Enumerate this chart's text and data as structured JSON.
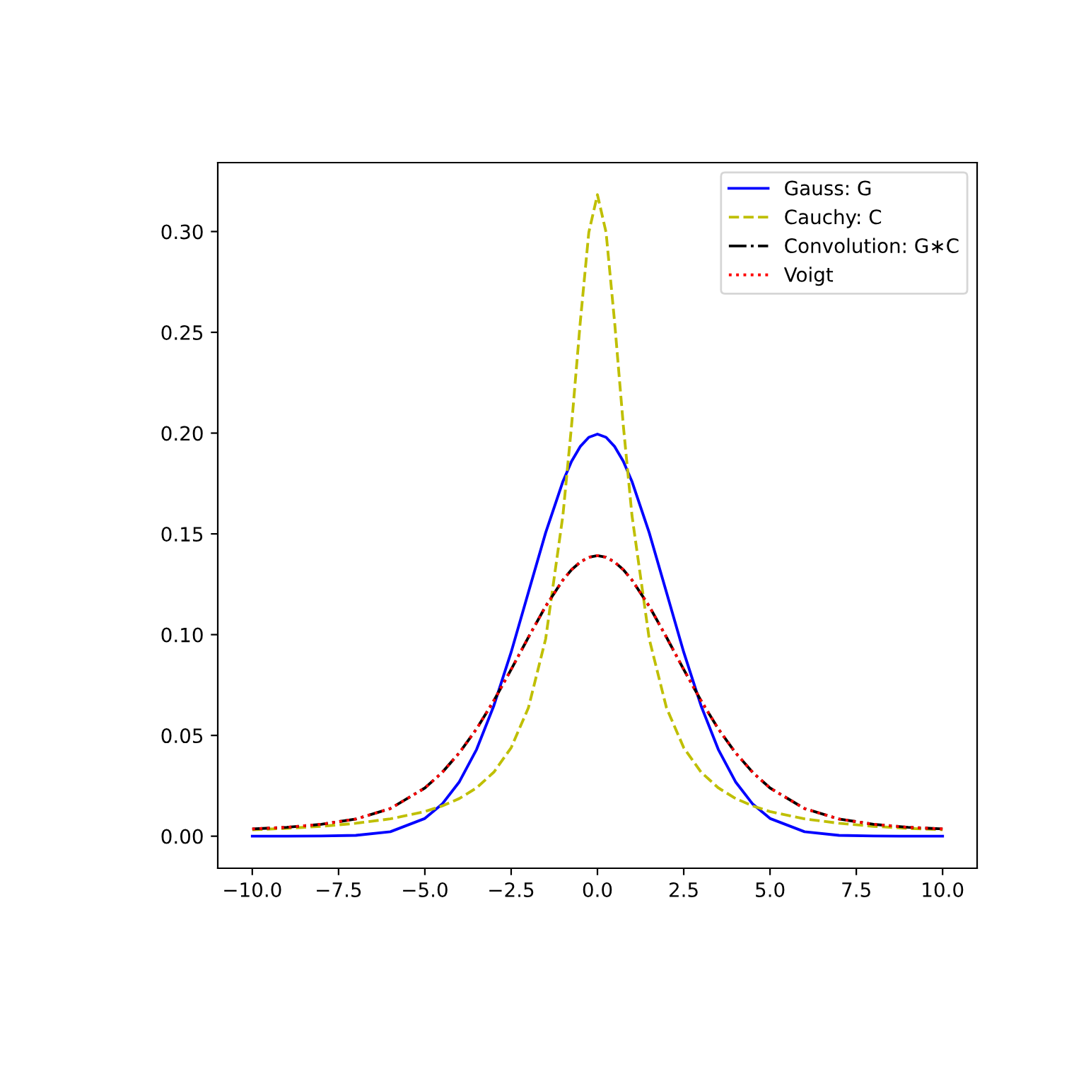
{
  "chart_data": {
    "type": "line",
    "x": [
      -10,
      -9,
      -8,
      -7,
      -6,
      -5,
      -4.5,
      -4,
      -3.5,
      -3,
      -2.5,
      -2,
      -1.5,
      -1,
      -0.75,
      -0.5,
      -0.25,
      0,
      0.25,
      0.5,
      0.75,
      1,
      1.5,
      2,
      2.5,
      3,
      3.5,
      4,
      4.5,
      5,
      6,
      7,
      8,
      9,
      10
    ],
    "series": [
      {
        "name": "Gauss: G",
        "color": "#0000ff",
        "line_style": "solid",
        "values": [
          0,
          0,
          0.0001,
          0.0004,
          0.0022,
          0.0088,
          0.0159,
          0.027,
          0.0431,
          0.0648,
          0.0913,
          0.121,
          0.1506,
          0.176,
          0.186,
          0.1933,
          0.1979,
          0.1995,
          0.1979,
          0.1933,
          0.186,
          0.176,
          0.1506,
          0.121,
          0.0913,
          0.0648,
          0.0431,
          0.027,
          0.0159,
          0.0088,
          0.0022,
          0.0004,
          0.0001,
          0,
          0
        ]
      },
      {
        "name": "Cauchy: C",
        "color": "#bfbf00",
        "line_style": "dashed",
        "values": [
          0.0032,
          0.0039,
          0.0049,
          0.0064,
          0.0086,
          0.0122,
          0.015,
          0.0187,
          0.024,
          0.0318,
          0.0439,
          0.0637,
          0.0979,
          0.1592,
          0.2037,
          0.2546,
          0.2996,
          0.3183,
          0.2996,
          0.2546,
          0.2037,
          0.1592,
          0.0979,
          0.0637,
          0.0439,
          0.0318,
          0.024,
          0.0187,
          0.015,
          0.0122,
          0.0086,
          0.0064,
          0.0049,
          0.0039,
          0.0032
        ]
      },
      {
        "name": "Convolution: G∗C",
        "color": "#000000",
        "line_style": "dashdot",
        "values": [
          0.0036,
          0.0044,
          0.0059,
          0.0085,
          0.0137,
          0.0239,
          0.0316,
          0.0414,
          0.0533,
          0.0673,
          0.0827,
          0.0987,
          0.1141,
          0.1271,
          0.1322,
          0.136,
          0.1384,
          0.1392,
          0.1384,
          0.136,
          0.1322,
          0.1271,
          0.1141,
          0.0987,
          0.0827,
          0.0673,
          0.0533,
          0.0414,
          0.0316,
          0.0239,
          0.0137,
          0.0085,
          0.0059,
          0.0044,
          0.0036
        ]
      },
      {
        "name": "Voigt",
        "color": "#ff0000",
        "line_style": "dotted",
        "values": [
          0.0036,
          0.0044,
          0.0059,
          0.0085,
          0.0137,
          0.0239,
          0.0316,
          0.0414,
          0.0533,
          0.0673,
          0.0827,
          0.0987,
          0.1141,
          0.1271,
          0.1322,
          0.136,
          0.1384,
          0.1392,
          0.1384,
          0.136,
          0.1322,
          0.1271,
          0.1141,
          0.0987,
          0.0827,
          0.0673,
          0.0533,
          0.0414,
          0.0316,
          0.0239,
          0.0137,
          0.0085,
          0.0059,
          0.0044,
          0.0036
        ]
      }
    ],
    "xlim": [
      -11,
      11
    ],
    "xticks": [
      {
        "value": -10,
        "label": "−10.0"
      },
      {
        "value": -7.5,
        "label": "−7.5"
      },
      {
        "value": -5,
        "label": "−5.0"
      },
      {
        "value": -2.5,
        "label": "−2.5"
      },
      {
        "value": 0,
        "label": "0.0"
      },
      {
        "value": 2.5,
        "label": "2.5"
      },
      {
        "value": 5,
        "label": "5.0"
      },
      {
        "value": 7.5,
        "label": "7.5"
      },
      {
        "value": 10,
        "label": "10.0"
      }
    ],
    "ylim": [
      -0.0159,
      0.3342
    ],
    "yticks": [
      {
        "value": 0,
        "label": "0.00"
      },
      {
        "value": 0.05,
        "label": "0.05"
      },
      {
        "value": 0.1,
        "label": "0.10"
      },
      {
        "value": 0.15,
        "label": "0.15"
      },
      {
        "value": 0.2,
        "label": "0.20"
      },
      {
        "value": 0.25,
        "label": "0.25"
      },
      {
        "value": 0.3,
        "label": "0.30"
      }
    ],
    "grid": false,
    "legend": "top right",
    "marker": "none"
  }
}
